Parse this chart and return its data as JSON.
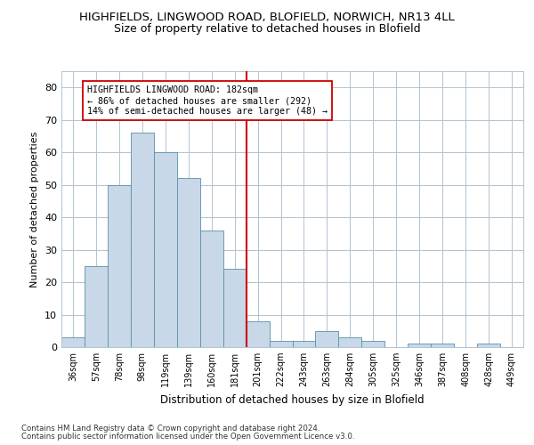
{
  "title1": "HIGHFIELDS, LINGWOOD ROAD, BLOFIELD, NORWICH, NR13 4LL",
  "title2": "Size of property relative to detached houses in Blofield",
  "xlabel": "Distribution of detached houses by size in Blofield",
  "ylabel": "Number of detached properties",
  "footer1": "Contains HM Land Registry data © Crown copyright and database right 2024.",
  "footer2": "Contains public sector information licensed under the Open Government Licence v3.0.",
  "annotation_title": "HIGHFIELDS LINGWOOD ROAD: 182sqm",
  "annotation_line1": "← 86% of detached houses are smaller (292)",
  "annotation_line2": "14% of semi-detached houses are larger (48) →",
  "bar_color": "#c8d8e8",
  "bar_edge_color": "#5a8fa8",
  "marker_color": "#cc0000",
  "categories": [
    "36sqm",
    "57sqm",
    "78sqm",
    "98sqm",
    "119sqm",
    "139sqm",
    "160sqm",
    "181sqm",
    "201sqm",
    "222sqm",
    "243sqm",
    "263sqm",
    "284sqm",
    "305sqm",
    "325sqm",
    "346sqm",
    "387sqm",
    "408sqm",
    "428sqm",
    "449sqm"
  ],
  "values": [
    3,
    25,
    50,
    66,
    60,
    52,
    36,
    24,
    8,
    2,
    2,
    5,
    3,
    2,
    0,
    1,
    1,
    0,
    1,
    0
  ],
  "marker_bin_index": 7,
  "ylim": [
    0,
    85
  ],
  "yticks": [
    0,
    10,
    20,
    30,
    40,
    50,
    60,
    70,
    80
  ],
  "background_color": "#ffffff",
  "grid_color": "#b0c4d4"
}
